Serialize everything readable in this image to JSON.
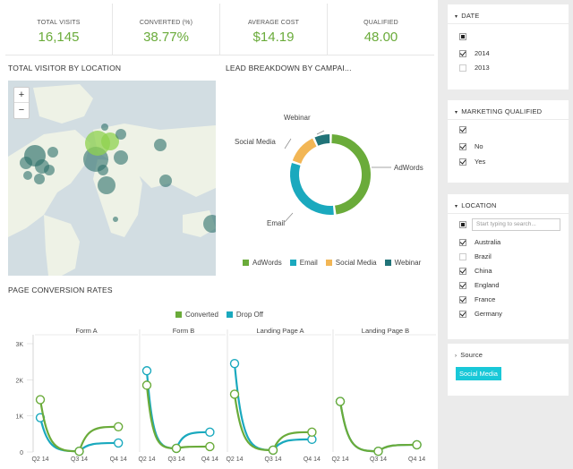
{
  "kpis": [
    {
      "label": "TOTAL VISITS",
      "value": "16,145"
    },
    {
      "label": "CONVERTED (%)",
      "value": "38.77%"
    },
    {
      "label": "AVERAGE COST",
      "value": "$14.19"
    },
    {
      "label": "QUALIFIED",
      "value": "48.00"
    }
  ],
  "map": {
    "title": "TOTAL VISITOR BY LOCATION",
    "zoom_in": "+",
    "zoom_out": "−"
  },
  "donut": {
    "title": "LEAD BREAKDOWN BY CAMPAI...",
    "segments": [
      {
        "name": "AdWords",
        "value": 48,
        "color": "#6aab3a"
      },
      {
        "name": "Email",
        "value": 32,
        "color": "#1aa9be"
      },
      {
        "name": "Social Media",
        "value": 13,
        "color": "#f2b655"
      },
      {
        "name": "Webinar",
        "value": 7,
        "color": "#217378"
      }
    ]
  },
  "conv": {
    "title": "PAGE CONVERSION RATES",
    "legend": [
      {
        "name": "Converted",
        "color": "#6aab3a"
      },
      {
        "name": "Drop Off",
        "color": "#1aa9be"
      }
    ]
  },
  "chart_data": {
    "type": "line",
    "title": "PAGE CONVERSION RATES",
    "panels": [
      "Form A",
      "Form B",
      "Landing Page A",
      "Landing Page B"
    ],
    "categories": [
      "Q2 14",
      "Q3 14",
      "Q4 14"
    ],
    "yticks": [
      "0",
      "1K",
      "2K",
      "3K"
    ],
    "ylim": [
      0,
      3000
    ],
    "series": [
      {
        "name": "Converted",
        "panels": [
          [
            1450,
            20,
            700
          ],
          [
            1850,
            100,
            150
          ],
          [
            1600,
            50,
            550
          ],
          [
            1400,
            20,
            200
          ]
        ]
      },
      {
        "name": "Drop Off",
        "panels": [
          [
            950,
            20,
            250
          ],
          [
            2250,
            100,
            550
          ],
          [
            2450,
            50,
            350
          ],
          [
            1400,
            20,
            200
          ]
        ]
      }
    ],
    "points": {
      "Form A": {
        "x": [
          0,
          1,
          2
        ],
        "Converted": [
          1450,
          20,
          700
        ],
        "Drop Off": [
          950,
          20,
          250
        ]
      }
    }
  },
  "filters": {
    "date": {
      "title": "DATE",
      "options": [
        {
          "label": "",
          "state": "partial"
        },
        {
          "label": "2014",
          "state": "checked"
        },
        {
          "label": "2013",
          "state": "empty"
        }
      ]
    },
    "mq": {
      "title": "MARKETING QUALIFIED",
      "options": [
        {
          "label": "",
          "state": "checked"
        },
        {
          "label": "No",
          "state": "checked"
        },
        {
          "label": "Yes",
          "state": "checked"
        }
      ]
    },
    "location": {
      "title": "LOCATION",
      "placeholder": "Start typing to search...",
      "options": [
        {
          "label": "Australia",
          "state": "checked"
        },
        {
          "label": "Brazil",
          "state": "empty"
        },
        {
          "label": "China",
          "state": "checked"
        },
        {
          "label": "England",
          "state": "checked"
        },
        {
          "label": "France",
          "state": "checked"
        },
        {
          "label": "Germany",
          "state": "checked"
        }
      ]
    },
    "source": {
      "title": "Source",
      "tag": "Social Media"
    }
  },
  "icons": {
    "collapse": "chevron-down-icon",
    "expand": "chevron-right-icon"
  }
}
